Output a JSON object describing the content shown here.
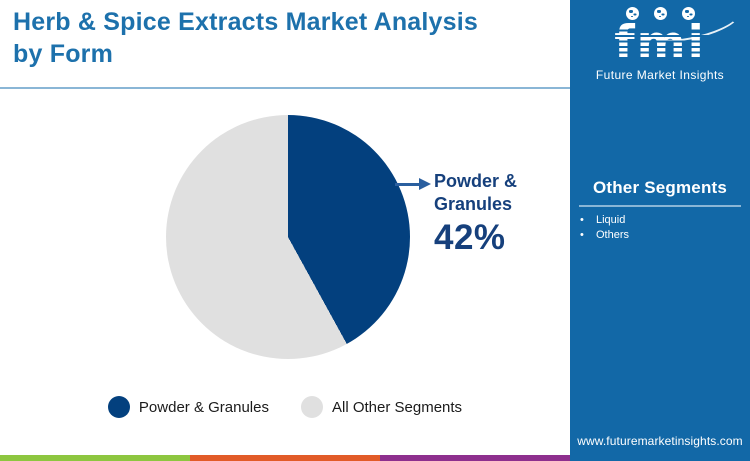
{
  "header": {
    "title": "Herb & Spice Extracts Market Analysis by Form"
  },
  "chart_data": {
    "type": "pie",
    "title": "Herb & Spice Extracts Market Analysis by Form",
    "slices": [
      {
        "label": "Powder & Granules",
        "value": 42,
        "color": "#03407e"
      },
      {
        "label": "All Other Segments",
        "value": 58,
        "color": "#e0e0e0"
      }
    ],
    "start_angle_deg": 0,
    "direction": "clockwise",
    "legend_position": "bottom",
    "callout": {
      "target_slice": "Powder & Granules",
      "line1": "Powder &",
      "line2": "Granules",
      "value": "42%"
    }
  },
  "sidebar": {
    "bg_color": "#1268a7",
    "logo": {
      "text": "fmi",
      "tagline": "Future Market Insights",
      "icons": [
        "globe-americas-icon",
        "globe-africa-europe-icon",
        "globe-asia-icon"
      ]
    },
    "other_segments": {
      "heading": "Other Segments",
      "items": [
        "Liquid",
        "Others"
      ]
    },
    "website": "www.futuremarketinsights.com"
  },
  "footer": {
    "stripe_colors": [
      "#8dc63f",
      "#e25b28",
      "#8e2f8e"
    ]
  },
  "colors": {
    "title_text": "#1d71ac",
    "title_rule": "#8ab6d6",
    "callout_text": "#16407c",
    "callout_arrow": "#2a5f9f",
    "legend_text": "#1b1b1b"
  }
}
